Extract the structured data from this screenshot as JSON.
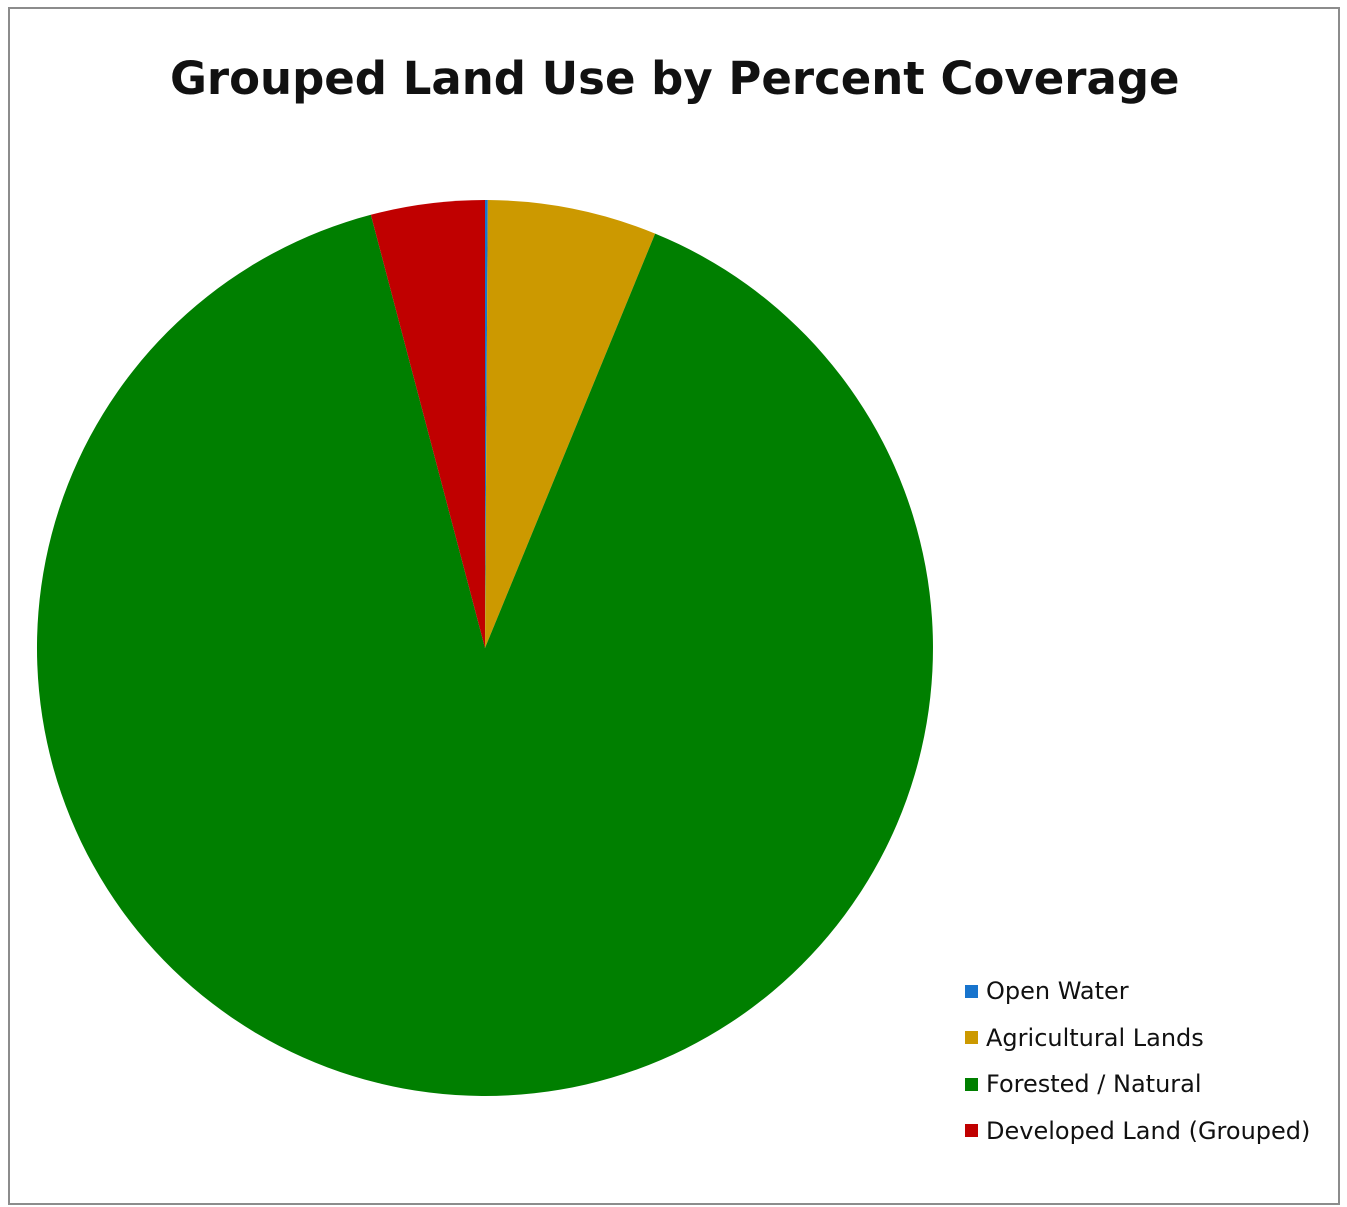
{
  "chart_data": {
    "type": "pie",
    "title": "Grouped Land Use by Percent Coverage",
    "start_angle_deg": 0,
    "direction": "clockwise",
    "legend_position": "bottom-right",
    "categories": [
      "Open Water",
      "Agricultural Lands",
      "Forested / Natural",
      "Developed Land (Grouped)"
    ],
    "values": [
      0.1,
      6.1,
      89.7,
      4.1
    ],
    "colors": [
      "#1874CD",
      "#CC9900",
      "#007F00",
      "#C00000"
    ]
  }
}
